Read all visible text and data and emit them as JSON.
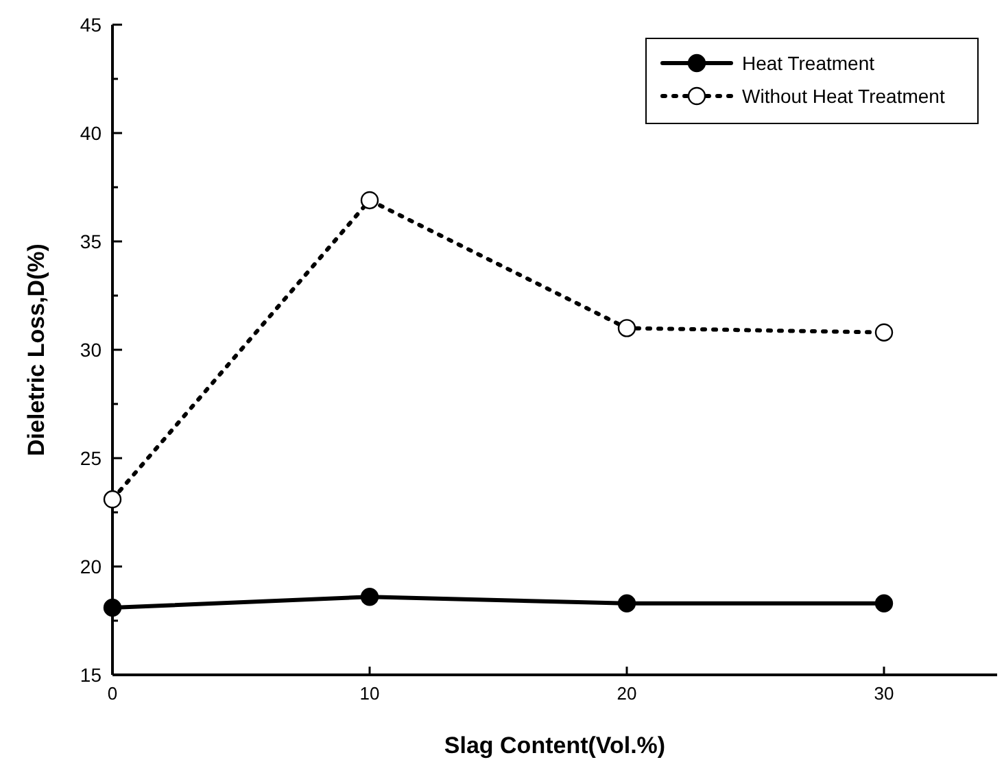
{
  "chart_data": {
    "type": "line",
    "xlabel": "Slag Content(Vol.%)",
    "ylabel": "Dieletric Loss,D(%)",
    "x": [
      0,
      10,
      20,
      30
    ],
    "series": [
      {
        "name": "Heat Treatment",
        "color": "#000000",
        "values": [
          18.1,
          18.6,
          18.3,
          18.3
        ],
        "line_style": "solid",
        "marker": "circle"
      },
      {
        "name": "Without Heat Treatment",
        "color": "#000000",
        "values": [
          23.1,
          36.9,
          31.0,
          30.8
        ],
        "line_style": "dotted",
        "marker": "circle"
      }
    ],
    "xlim": [
      0,
      34.4
    ],
    "xticks": [
      0,
      10,
      20,
      30
    ],
    "ylim": [
      15,
      45
    ],
    "yticks": [
      15,
      {
        "value": 17.5,
        "label": null
      },
      20,
      {
        "value": 22.5,
        "label": null
      },
      25,
      {
        "value": 27.5,
        "label": null
      },
      30,
      {
        "value": 32.5,
        "label": null
      },
      35,
      {
        "value": 37.5,
        "label": null
      },
      40,
      {
        "value": 42.5,
        "label": null
      },
      45
    ],
    "grid": false,
    "legend": "top right"
  }
}
